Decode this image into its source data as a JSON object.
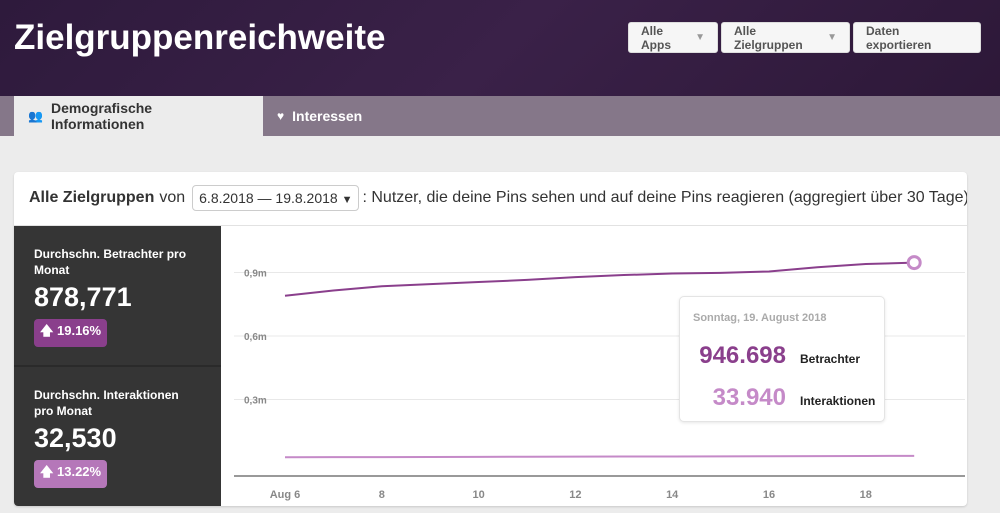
{
  "header": {
    "title": "Zielgruppenreichweite",
    "buttons": {
      "apps": "Alle Apps",
      "audiences": "Alle Zielgruppen",
      "export": "Daten exportieren"
    }
  },
  "tabs": [
    {
      "label": "Demografische Informationen",
      "icon": "users-icon",
      "active": true
    },
    {
      "label": "Interessen",
      "icon": "heart-icon",
      "active": false
    }
  ],
  "card": {
    "audience": "Alle Zielgruppen",
    "von": "von",
    "date_range": "6.8.2018 — 19.8.2018",
    "description": ": Nutzer, die deine Pins sehen und auf deine Pins reagieren (aggregiert über 30 Tage)"
  },
  "stats": [
    {
      "label": "Durchschn. Betrachter pro Monat",
      "value": "878,771",
      "change": "19.16%",
      "color": "#8a3f8c"
    },
    {
      "label": "Durchschn. Interaktionen pro Monat",
      "value": "32,530",
      "change": "13.22%",
      "color": "#b577b9"
    }
  ],
  "tooltip": {
    "date": "Sonntag, 19. August 2018",
    "viewers_value": "946.698",
    "viewers_label": "Betrachter",
    "interactions_value": "33.940",
    "interactions_label": "Interaktionen"
  },
  "chart_data": {
    "type": "line",
    "x": [
      6,
      7,
      8,
      9,
      10,
      11,
      12,
      13,
      14,
      15,
      16,
      17,
      18,
      19
    ],
    "x_tick_labels": [
      "Aug 6",
      "8",
      "10",
      "12",
      "14",
      "16",
      "18"
    ],
    "x_ticks": [
      6,
      8,
      10,
      12,
      14,
      16,
      18
    ],
    "y_tick_labels": [
      "0,3m",
      "0,6m",
      "0,9m"
    ],
    "y_ticks": [
      300000,
      600000,
      900000
    ],
    "ylim": [
      0,
      1000000
    ],
    "grid": true,
    "series": [
      {
        "name": "Betrachter",
        "color": "#8a3f8c",
        "values": [
          790000,
          815000,
          835000,
          845000,
          855000,
          865000,
          878000,
          888000,
          895000,
          898000,
          905000,
          925000,
          940000,
          946698
        ]
      },
      {
        "name": "Interaktionen",
        "color": "#c58ac8",
        "values": [
          27000,
          27500,
          28000,
          28500,
          29000,
          29500,
          30000,
          30500,
          31000,
          31500,
          32000,
          32500,
          33200,
          33940
        ]
      }
    ]
  }
}
